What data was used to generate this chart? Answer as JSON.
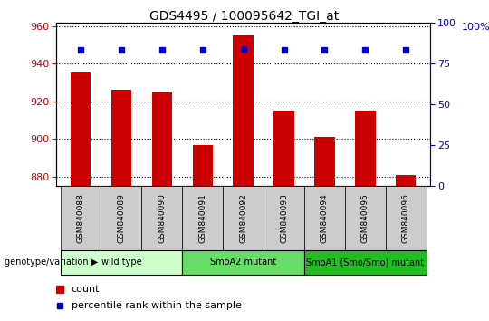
{
  "title": "GDS4495 / 100095642_TGI_at",
  "samples": [
    "GSM840088",
    "GSM840089",
    "GSM840090",
    "GSM840091",
    "GSM840092",
    "GSM840093",
    "GSM840094",
    "GSM840095",
    "GSM840096"
  ],
  "counts": [
    936,
    926,
    925,
    897,
    955,
    915,
    901,
    915,
    881
  ],
  "percentile_ranks": [
    83,
    83,
    83,
    83,
    84,
    83,
    83,
    83,
    83
  ],
  "ylim_left": [
    875,
    962
  ],
  "ylim_right": [
    0,
    100
  ],
  "yticks_left": [
    880,
    900,
    920,
    940,
    960
  ],
  "yticks_right": [
    0,
    25,
    50,
    75,
    100
  ],
  "groups": [
    {
      "label": "wild type",
      "n": 3,
      "color": "#ccffcc"
    },
    {
      "label": "SmoA2 mutant",
      "n": 3,
      "color": "#66dd66"
    },
    {
      "label": "SmoA1 (Smo/Smo) mutant",
      "n": 3,
      "color": "#22bb22"
    }
  ],
  "bar_color": "#cc0000",
  "dot_color": "#0000cc",
  "bar_width": 0.5,
  "sample_box_color": "#cccccc",
  "legend_count_label": "count",
  "legend_pct_label": "percentile rank within the sample",
  "genotype_label": "genotype/variation"
}
